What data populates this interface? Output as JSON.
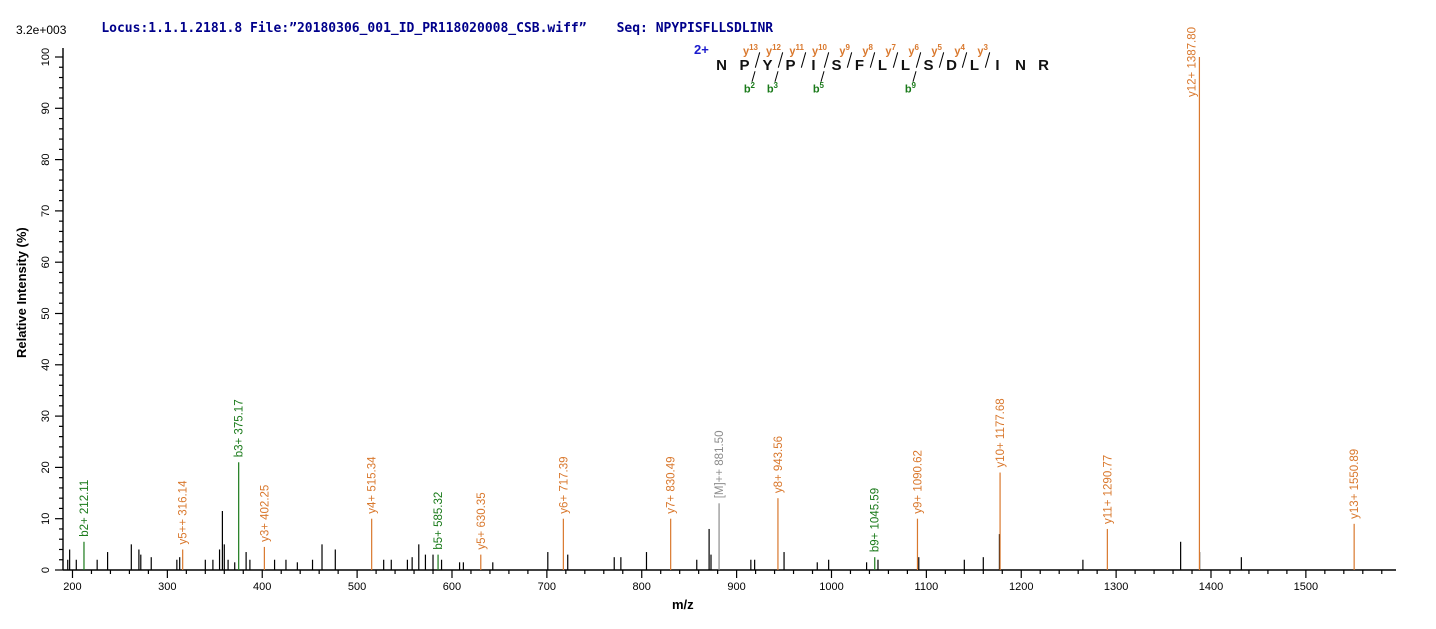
{
  "header": {
    "locus_file": "Locus:1.1.1.2181.8 File:”20180306_001_ID_PR118020008_CSB.wiff”",
    "seq_label": "Seq: NPYPISFLLSDLINR",
    "max_intensity": "3.2e+003",
    "text_color": "#00008B"
  },
  "axes": {
    "y_title": "Relative  Intensity (%)",
    "x_title": "m/z"
  },
  "annotation": {
    "charge": "2+",
    "residues": [
      "N",
      "P",
      "Y",
      "P",
      "I",
      "S",
      "F",
      "L",
      "L",
      "S",
      "D",
      "L",
      "I",
      "N",
      "R"
    ],
    "cleavages": [
      {
        "after": 2,
        "y": "y13",
        "b": "b2"
      },
      {
        "after": 3,
        "y": "y12",
        "b": "b3"
      },
      {
        "after": 4,
        "y": "y11",
        "b": null
      },
      {
        "after": 5,
        "y": "y10",
        "b": "b5"
      },
      {
        "after": 6,
        "y": "y9",
        "b": null
      },
      {
        "after": 7,
        "y": "y8",
        "b": null
      },
      {
        "after": 8,
        "y": "y7",
        "b": null
      },
      {
        "after": 9,
        "y": "y6",
        "b": "b9"
      },
      {
        "after": 10,
        "y": "y5",
        "b": null
      },
      {
        "after": 11,
        "y": "y4",
        "b": null
      },
      {
        "after": 12,
        "y": "y3",
        "b": null
      }
    ]
  },
  "colors": {
    "y_ion": "#D9782D",
    "b_ion": "#1A7A1A",
    "precursor": "#8C8C8C",
    "unmatched_peak": "#000000",
    "header_text": "#00008B",
    "charge_text": "#1a1acd"
  },
  "chart_data": {
    "type": "bar",
    "subtype": "ms2-stick-spectrum",
    "xlabel": "m/z",
    "ylabel": "Relative  Intensity (%)",
    "xlim": [
      190,
      1595
    ],
    "ylim": [
      0,
      100
    ],
    "x_major_step": 100,
    "x_minor_step": 20,
    "y_major_step": 10,
    "y_minor_step": 2,
    "base_peak_absolute_intensity": "3.2e+003",
    "labeled_peaks": [
      {
        "label": "b2+ 212.11",
        "mz": 212.11,
        "intensity": 5.5,
        "type": "b"
      },
      {
        "label": "y5++ 316.14",
        "mz": 316.14,
        "intensity": 4,
        "type": "y"
      },
      {
        "label": "b3+ 375.17",
        "mz": 375.17,
        "intensity": 21,
        "type": "b"
      },
      {
        "label": "y3+ 402.25",
        "mz": 402.25,
        "intensity": 4.5,
        "type": "y"
      },
      {
        "label": "y4+ 515.34",
        "mz": 515.34,
        "intensity": 10,
        "type": "y"
      },
      {
        "label": "b5+ 585.32",
        "mz": 585.32,
        "intensity": 3,
        "type": "b"
      },
      {
        "label": "y5+ 630.35",
        "mz": 630.35,
        "intensity": 3,
        "type": "y"
      },
      {
        "label": "y6+ 717.39",
        "mz": 717.39,
        "intensity": 10,
        "type": "y"
      },
      {
        "label": "y7+ 830.49",
        "mz": 830.49,
        "intensity": 10,
        "type": "y"
      },
      {
        "label": "[M]++ 881.50",
        "mz": 881.5,
        "intensity": 13,
        "type": "M"
      },
      {
        "label": "y8+ 943.56",
        "mz": 943.56,
        "intensity": 14,
        "type": "y"
      },
      {
        "label": "b9+ 1045.59",
        "mz": 1045.59,
        "intensity": 2.5,
        "type": "b"
      },
      {
        "label": "y9+ 1090.62",
        "mz": 1090.62,
        "intensity": 10,
        "type": "y"
      },
      {
        "label": "y10+ 1177.68",
        "mz": 1177.68,
        "intensity": 19,
        "type": "y"
      },
      {
        "label": "y11+ 1290.77",
        "mz": 1290.77,
        "intensity": 8,
        "type": "y"
      },
      {
        "label": "y12+ 1387.80",
        "mz": 1387.8,
        "intensity": 100,
        "type": "y"
      },
      {
        "label": "y13+ 1550.89",
        "mz": 1550.89,
        "intensity": 9,
        "type": "y"
      }
    ],
    "unlabeled_peaks": [
      [
        195,
        2
      ],
      [
        197,
        4
      ],
      [
        204,
        2
      ],
      [
        226,
        2
      ],
      [
        237,
        3.5
      ],
      [
        262,
        5
      ],
      [
        270,
        4
      ],
      [
        272,
        3
      ],
      [
        283,
        2.5
      ],
      [
        310,
        2
      ],
      [
        313,
        2.5
      ],
      [
        340,
        2
      ],
      [
        348,
        2
      ],
      [
        355,
        4
      ],
      [
        358,
        11.5
      ],
      [
        360,
        5
      ],
      [
        364,
        2
      ],
      [
        371,
        1.5
      ],
      [
        383,
        3.5
      ],
      [
        387,
        2
      ],
      [
        413,
        2
      ],
      [
        425,
        2
      ],
      [
        437,
        1.5
      ],
      [
        453,
        2
      ],
      [
        463,
        5
      ],
      [
        477,
        4
      ],
      [
        528,
        2
      ],
      [
        536,
        2
      ],
      [
        553,
        2
      ],
      [
        558,
        2.5
      ],
      [
        565,
        5
      ],
      [
        572,
        3
      ],
      [
        580,
        3
      ],
      [
        589,
        2
      ],
      [
        608,
        1.5
      ],
      [
        612,
        1.5
      ],
      [
        643,
        1.5
      ],
      [
        701,
        3.5
      ],
      [
        722,
        3
      ],
      [
        771,
        2.5
      ],
      [
        778,
        2.5
      ],
      [
        805,
        3.5
      ],
      [
        858,
        2
      ],
      [
        871,
        8
      ],
      [
        873,
        3
      ],
      [
        915,
        2
      ],
      [
        919,
        2
      ],
      [
        950,
        3.5
      ],
      [
        985,
        1.5
      ],
      [
        997,
        2
      ],
      [
        1037,
        1.5
      ],
      [
        1049,
        2
      ],
      [
        1092,
        2.5
      ],
      [
        1140,
        2
      ],
      [
        1160,
        2.5
      ],
      [
        1177,
        7
      ],
      [
        1265,
        2
      ],
      [
        1368,
        5.5
      ],
      [
        1388,
        3.5
      ],
      [
        1432,
        2.5
      ]
    ]
  }
}
